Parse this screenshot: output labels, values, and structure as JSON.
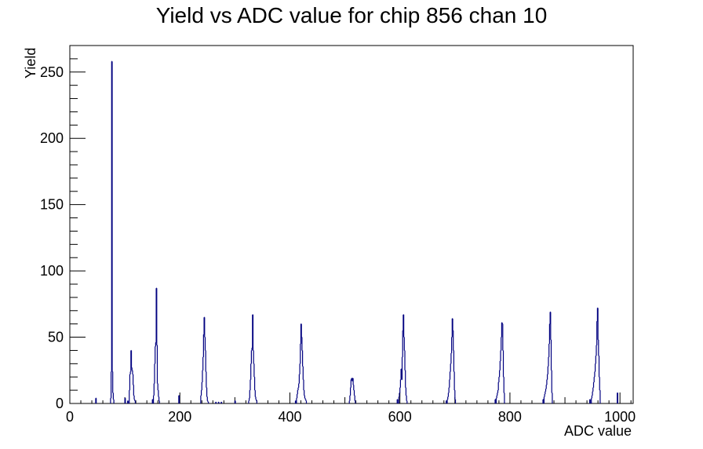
{
  "chart_data": {
    "type": "bar",
    "title": "Yield vs ADC value for chip 856 chan 10",
    "xlabel": "ADC value",
    "ylabel": "Yield",
    "xlim": [
      0,
      1024
    ],
    "ylim": [
      0,
      270
    ],
    "x_ticks": [
      0,
      200,
      400,
      600,
      800,
      1000
    ],
    "y_ticks": [
      0,
      50,
      100,
      150,
      200,
      250
    ],
    "grid": false,
    "legend": "none",
    "line_color": "#000080",
    "x": [
      47,
      74,
      75,
      76,
      77,
      78,
      79,
      100,
      105,
      108,
      109,
      110,
      111,
      112,
      113,
      114,
      115,
      116,
      117,
      118,
      150,
      152,
      153,
      154,
      155,
      156,
      157,
      158,
      159,
      160,
      161,
      162,
      198,
      238,
      239,
      240,
      241,
      242,
      243,
      244,
      245,
      246,
      247,
      248,
      249,
      250,
      251,
      265,
      270,
      275,
      300,
      325,
      326,
      327,
      328,
      329,
      330,
      331,
      332,
      333,
      334,
      335,
      336,
      337,
      338,
      339,
      410,
      412,
      413,
      414,
      415,
      416,
      417,
      418,
      419,
      420,
      421,
      422,
      423,
      424,
      425,
      426,
      427,
      428,
      429,
      508,
      509,
      510,
      511,
      512,
      513,
      514,
      515,
      516,
      517,
      518,
      595,
      598,
      599,
      600,
      601,
      602,
      603,
      604,
      605,
      606,
      607,
      608,
      609,
      610,
      611,
      612,
      684,
      686,
      687,
      688,
      689,
      690,
      691,
      692,
      693,
      694,
      695,
      696,
      697,
      698,
      699,
      700,
      773,
      775,
      776,
      777,
      778,
      779,
      780,
      781,
      782,
      783,
      784,
      785,
      786,
      787,
      788,
      789,
      860,
      862,
      863,
      864,
      865,
      866,
      867,
      868,
      869,
      870,
      871,
      872,
      873,
      874,
      875,
      876,
      945,
      948,
      949,
      950,
      951,
      952,
      953,
      954,
      955,
      956,
      957,
      958,
      959,
      960,
      961,
      962,
      963,
      995
    ],
    "values": [
      4,
      4,
      24,
      258,
      24,
      8,
      3,
      4,
      2,
      10,
      22,
      24,
      40,
      27,
      25,
      22,
      14,
      6,
      3,
      2,
      3,
      6,
      15,
      30,
      43,
      46,
      87,
      44,
      15,
      10,
      5,
      2,
      6,
      6,
      10,
      16,
      25,
      35,
      52,
      65,
      50,
      40,
      24,
      12,
      5,
      2,
      1,
      1,
      1,
      1,
      2,
      2,
      4,
      10,
      18,
      30,
      40,
      42,
      67,
      40,
      30,
      20,
      10,
      5,
      3,
      2,
      2,
      4,
      7,
      10,
      12,
      15,
      22,
      30,
      45,
      60,
      50,
      40,
      28,
      18,
      10,
      6,
      4,
      3,
      2,
      2,
      6,
      12,
      18,
      19,
      17,
      19,
      14,
      10,
      6,
      2,
      3,
      5,
      8,
      12,
      18,
      26,
      18,
      35,
      55,
      67,
      50,
      40,
      25,
      12,
      6,
      2,
      2,
      3,
      5,
      8,
      12,
      18,
      24,
      30,
      38,
      50,
      64,
      55,
      40,
      24,
      10,
      3,
      3,
      4,
      6,
      8,
      10,
      16,
      20,
      25,
      32,
      40,
      50,
      61,
      60,
      40,
      20,
      8,
      3,
      5,
      7,
      9,
      11,
      14,
      18,
      22,
      28,
      35,
      45,
      60,
      69,
      48,
      25,
      8,
      3,
      4,
      6,
      9,
      12,
      16,
      20,
      24,
      30,
      36,
      44,
      62,
      72,
      48,
      36,
      20,
      10,
      8
    ]
  }
}
